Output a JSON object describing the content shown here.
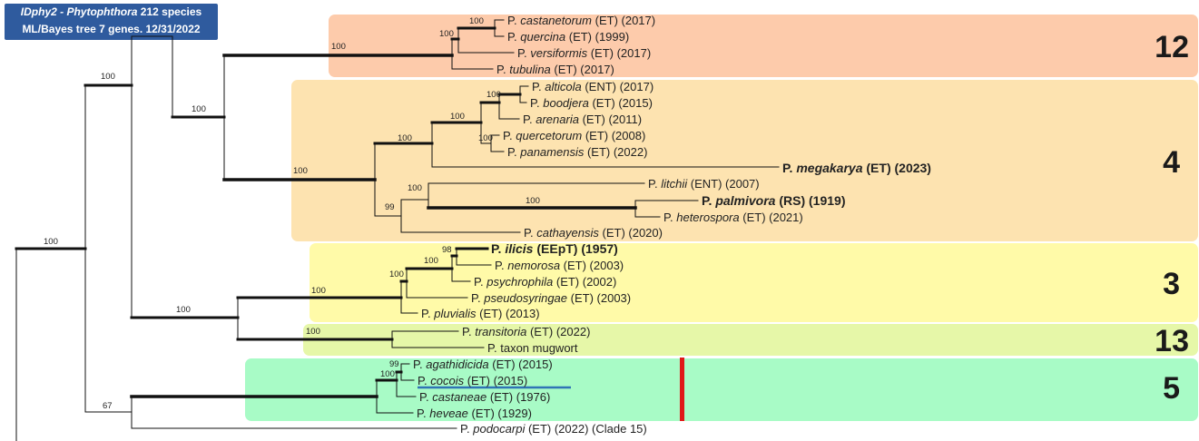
{
  "title": {
    "line1_italic": "IDphy2 - Phytophthora",
    "line1_rest": " 212 species",
    "line2": "ML/Bayes tree 7 genes. 12/31/2022"
  },
  "clades": [
    {
      "id": "12",
      "label": "12",
      "color": "#fdcbab"
    },
    {
      "id": "4",
      "label": "4",
      "color": "#fde3b0"
    },
    {
      "id": "3",
      "label": "3",
      "color": "#fffaa8"
    },
    {
      "id": "13",
      "label": "13",
      "color": "#e6f7a8"
    },
    {
      "id": "5",
      "label": "5",
      "color": "#a8fbc6"
    }
  ],
  "taxa": [
    {
      "genus": "P.",
      "species": "castanetorum",
      "rest": "(ET) (2017)",
      "bold": false
    },
    {
      "genus": "P.",
      "species": "quercina",
      "rest": "(ET) (1999)",
      "bold": false
    },
    {
      "genus": "P.",
      "species": "versiformis",
      "rest": "(ET) (2017)",
      "bold": false
    },
    {
      "genus": "P.",
      "species": "tubulina",
      "rest": "(ET) (2017)",
      "bold": false
    },
    {
      "genus": "P.",
      "species": "alticola",
      "rest": "(ENT) (2017)",
      "bold": false
    },
    {
      "genus": "P.",
      "species": "boodjera",
      "rest": "(ET) (2015)",
      "bold": false
    },
    {
      "genus": "P.",
      "species": "arenaria",
      "rest": "(ET) (2011)",
      "bold": false
    },
    {
      "genus": "P.",
      "species": "quercetorum",
      "rest": "(ET) (2008)",
      "bold": false
    },
    {
      "genus": "P.",
      "species": "panamensis",
      "rest": "(ET) (2022)",
      "bold": false
    },
    {
      "genus": "P.",
      "species": "megakarya",
      "rest": "(ET) (2023)",
      "bold": true
    },
    {
      "genus": "P.",
      "species": "litchii",
      "rest": "(ENT) (2007)",
      "bold": false
    },
    {
      "genus": "P.",
      "species": "palmivora",
      "rest": "(RS) (1919)",
      "bold": true
    },
    {
      "genus": "P.",
      "species": "heterospora",
      "rest": "(ET) (2021)",
      "bold": false
    },
    {
      "genus": "P.",
      "species": "cathayensis",
      "rest": "(ET) (2020)",
      "bold": false
    },
    {
      "genus": "P.",
      "species": "ilicis",
      "rest": "(EEpT) (1957)",
      "bold": true
    },
    {
      "genus": "P.",
      "species": "nemorosa",
      "rest": "(ET) (2003)",
      "bold": false
    },
    {
      "genus": "P.",
      "species": "psychrophila",
      "rest": "(ET) (2002)",
      "bold": false
    },
    {
      "genus": "P.",
      "species": "pseudosyringae",
      "rest": "(ET) (2003)",
      "bold": false
    },
    {
      "genus": "P.",
      "species": "pluvialis",
      "rest": "(ET) (2013)",
      "bold": false
    },
    {
      "genus": "P.",
      "species": "transitoria",
      "rest": "(ET) (2022)",
      "bold": false
    },
    {
      "genus": "P.",
      "species": "",
      "rest": "taxon mugwort",
      "bold": false
    },
    {
      "genus": "P.",
      "species": "agathidicida",
      "rest": "(ET) (2015)",
      "bold": false
    },
    {
      "genus": "P.",
      "species": "cocois",
      "rest": "(ET) (2015)",
      "bold": false
    },
    {
      "genus": "P.",
      "species": "castaneae",
      "rest": "(ET) (1976)",
      "bold": false
    },
    {
      "genus": "P.",
      "species": "heveae",
      "rest": "(ET) (1929)",
      "bold": false
    },
    {
      "genus": "P.",
      "species": "podocarpi",
      "rest": "(ET) (2022) (Clade 15)",
      "bold": false
    }
  ],
  "support_values": [
    "100",
    "100",
    "100",
    "100",
    "100",
    "100",
    "100",
    "100",
    "100",
    "100",
    "99",
    "100",
    "98",
    "100",
    "100",
    "100",
    "100",
    "100",
    "99",
    "100",
    "100",
    "67",
    "100"
  ]
}
